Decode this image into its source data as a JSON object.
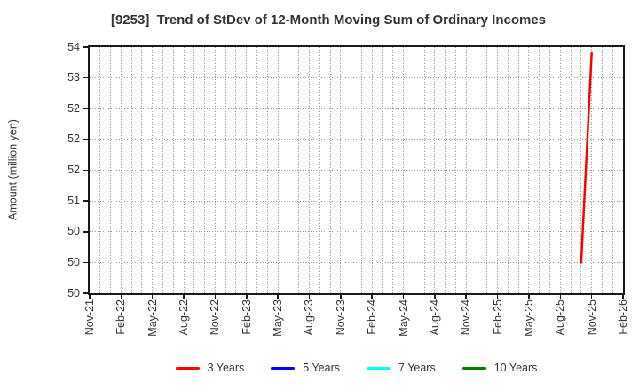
{
  "title": "[9253]  Trend of StDev of 12-Month Moving Sum of Ordinary Incomes",
  "chart_data": {
    "type": "line",
    "title": "[9253]  Trend of StDev of 12-Month Moving Sum of Ordinary Incomes",
    "xlabel": "",
    "ylabel": "Amount (million yen)",
    "ylim": [
      49.5,
      53.5
    ],
    "grid": true,
    "legend_position": "bottom-center",
    "x_axis": {
      "start_month": "Nov-21",
      "end_month": "Feb-26",
      "months_total": 51,
      "tick_every_months": 3,
      "tick_labels": [
        "Nov-21",
        "Feb-22",
        "May-22",
        "Aug-22",
        "Nov-22",
        "Feb-23",
        "May-23",
        "Aug-23",
        "Nov-23",
        "Feb-24",
        "May-24",
        "Aug-24",
        "Nov-24",
        "Feb-25",
        "May-25",
        "Aug-25",
        "Nov-25",
        "Feb-26"
      ]
    },
    "y_axis": {
      "ticks": [
        {
          "value": 53.5,
          "label": "54"
        },
        {
          "value": 53.0,
          "label": "53"
        },
        {
          "value": 52.5,
          "label": "52"
        },
        {
          "value": 52.0,
          "label": "52"
        },
        {
          "value": 51.5,
          "label": "52"
        },
        {
          "value": 51.0,
          "label": "51"
        },
        {
          "value": 50.5,
          "label": "50"
        },
        {
          "value": 50.0,
          "label": "50"
        },
        {
          "value": 49.5,
          "label": "50"
        }
      ]
    },
    "series": [
      {
        "name": "3 Years",
        "color": "#ff0000",
        "points": [
          {
            "month": "Oct-25",
            "month_index": 47,
            "value": 50.0
          },
          {
            "month": "Nov-25",
            "month_index": 48,
            "value": 53.4
          }
        ]
      },
      {
        "name": "5 Years",
        "color": "#0000ff",
        "points": []
      },
      {
        "name": "7 Years",
        "color": "#00ffff",
        "points": []
      },
      {
        "name": "10 Years",
        "color": "#008000",
        "points": []
      }
    ]
  }
}
